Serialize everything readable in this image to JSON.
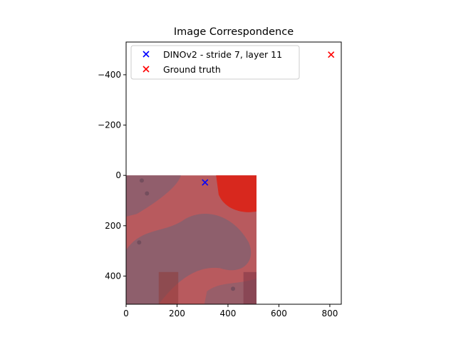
{
  "chart_data": {
    "type": "scatter",
    "title": "Image Correspondence",
    "xlabel": "",
    "ylabel": "",
    "xlim": [
      0,
      845
    ],
    "ylim": [
      512,
      -530
    ],
    "y_inverted": true,
    "x_ticks": [
      0,
      200,
      400,
      600,
      800
    ],
    "y_ticks": [
      -400,
      -200,
      0,
      200,
      400
    ],
    "x_tick_labels": [
      "0",
      "200",
      "400",
      "600",
      "800"
    ],
    "y_tick_labels": [
      "−400",
      "−200",
      "0",
      "200",
      "400"
    ],
    "background_image": {
      "extent": [
        0,
        512,
        0,
        512
      ],
      "description_color": "#b85a5e"
    },
    "legend": {
      "placement": "upper-left",
      "entries": [
        {
          "label": "DINOv2 - stride 7, layer 11",
          "color": "#0000ff",
          "marker": "x"
        },
        {
          "label": "Ground truth",
          "color": "#ff0000",
          "marker": "x"
        }
      ]
    },
    "series": [
      {
        "name": "DINOv2 - stride 7, layer 11",
        "color": "#0000ff",
        "marker": "x",
        "points": [
          [
            310,
            28
          ]
        ]
      },
      {
        "name": "Ground truth",
        "color": "#ff0000",
        "marker": "x",
        "points": [
          [
            805,
            -480
          ]
        ]
      }
    ]
  }
}
